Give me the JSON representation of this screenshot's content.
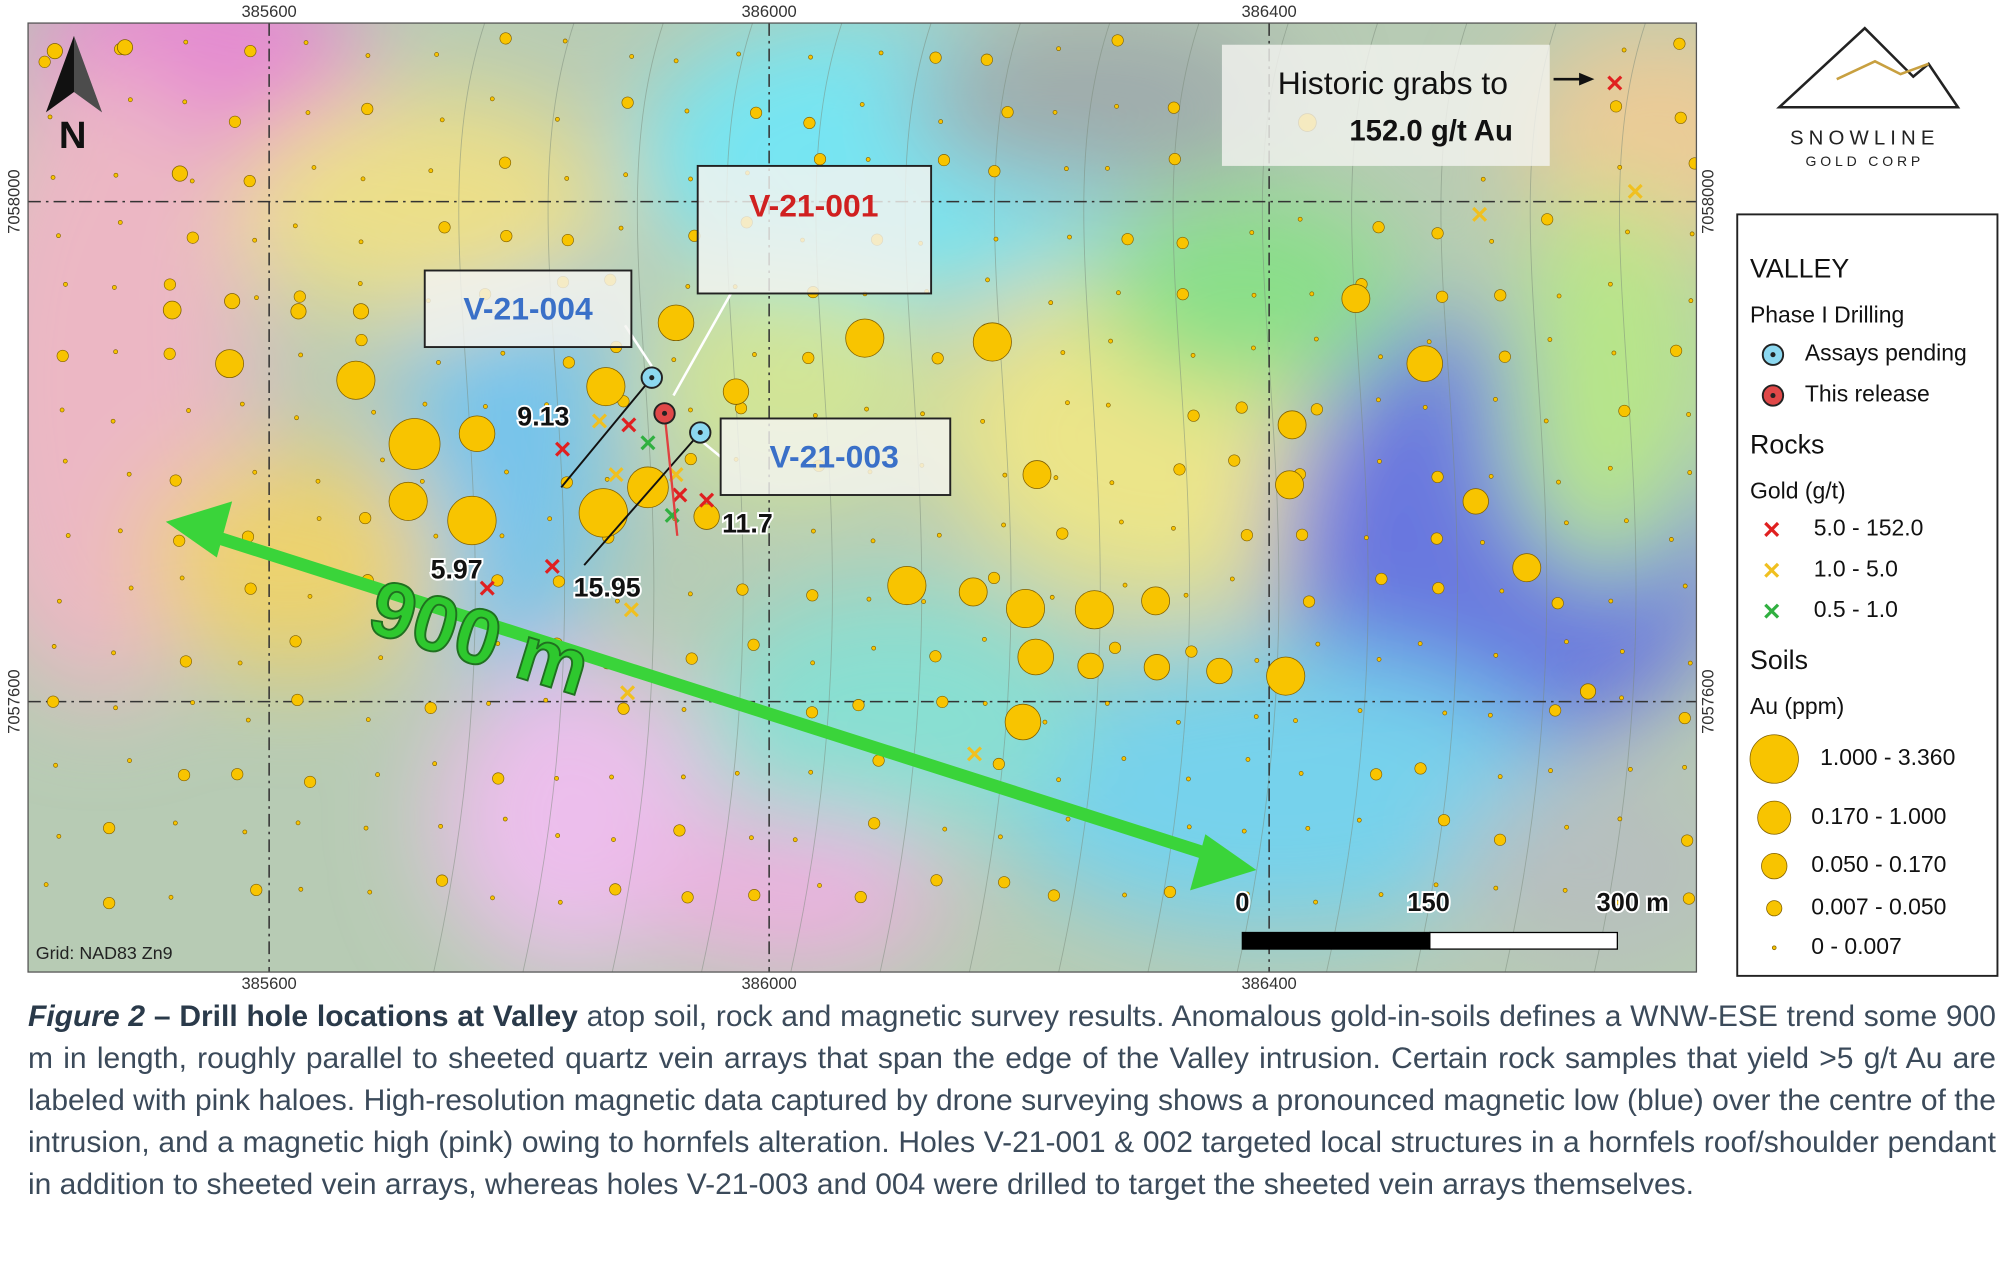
{
  "map": {
    "x_ticks": [
      "385600",
      "386000",
      "386400"
    ],
    "y_ticks": [
      "7058000",
      "7057600"
    ],
    "north": "N",
    "grid_label": "Grid: NAD83 Zn9",
    "distance_label": "900 m",
    "historic": [
      "Historic grabs to",
      "152.0 g/t Au"
    ],
    "holes": [
      "V-21-001",
      "V-21-004",
      "V-21-003"
    ],
    "assay_labels": [
      "9.13",
      "11.7",
      "5.97",
      "15.95"
    ],
    "scale": [
      "0",
      "150",
      "300 m"
    ]
  },
  "logo": {
    "name": "SNOWLINE",
    "sub": "GOLD CORP"
  },
  "legend": {
    "title": "VALLEY",
    "drilling": {
      "title": "Phase I Drilling",
      "items": [
        "Assays pending",
        "This release"
      ]
    },
    "rocks": {
      "title": "Rocks",
      "subtitle": "Gold (g/t)",
      "items": [
        "5.0 - 152.0",
        "1.0 - 5.0",
        "0.5 - 1.0"
      ]
    },
    "soils": {
      "title": "Soils",
      "subtitle": "Au (ppm)",
      "items": [
        "1.000 - 3.360",
        "0.170 - 1.000",
        "0.050 - 0.170",
        "0.007 - 0.050",
        "0 - 0.007"
      ]
    }
  },
  "caption": {
    "label": "Figure 2",
    "title": "– Drill hole locations at Valley",
    "text": "atop soil, rock and magnetic survey results. Anomalous gold-in-soils defines a WNW-ESE trend some 900 m in length, roughly parallel to sheeted quartz vein arrays that span the edge of the Valley intrusion. Certain rock samples that yield >5 g/t Au are labeled with pink haloes. High-resolution magnetic data captured by drone surveying shows a pronounced magnetic low (blue) over the centre of the intrusion, and a magnetic high (pink) owing to hornfels alteration. Holes V-21-001 & 002 targeted local structures in a hornfels roof/shoulder pendant in addition to sheeted vein arrays, whereas holes V-21-003 and 004 were drilled to target the sheeted vein arrays themselves."
  }
}
